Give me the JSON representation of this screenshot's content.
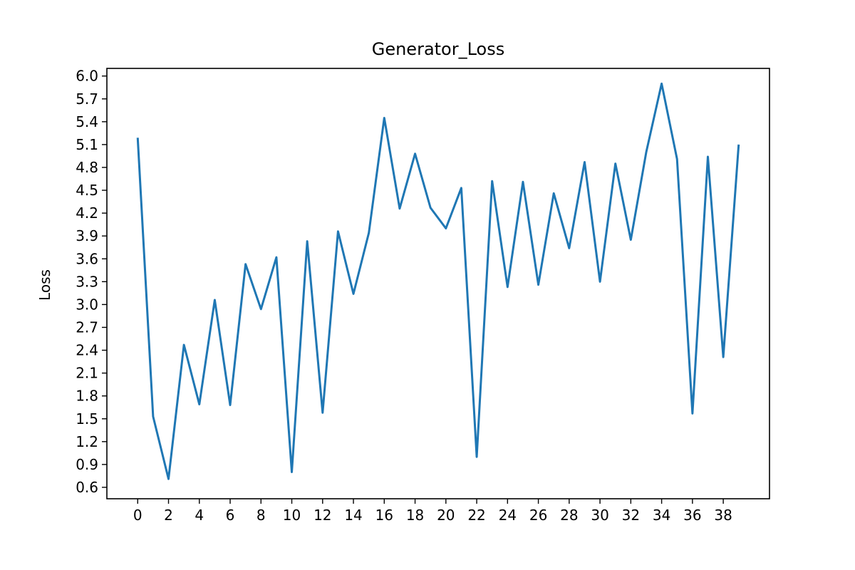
{
  "chart_data": {
    "type": "line",
    "title": "Generator_Loss",
    "xlabel": "",
    "ylabel": "Loss",
    "xlim": [
      -2,
      41
    ],
    "ylim": [
      0.45,
      6.1
    ],
    "xticks": [
      0,
      2,
      4,
      6,
      8,
      10,
      12,
      14,
      16,
      18,
      20,
      22,
      24,
      26,
      28,
      30,
      32,
      34,
      36,
      38
    ],
    "xtick_labels": [
      "0",
      "2",
      "4",
      "6",
      "8",
      "10",
      "12",
      "14",
      "16",
      "18",
      "20",
      "22",
      "24",
      "26",
      "28",
      "30",
      "32",
      "34",
      "36",
      "38"
    ],
    "yticks": [
      0.6,
      0.9,
      1.2,
      1.5,
      1.8,
      2.1,
      2.4,
      2.7,
      3.0,
      3.3,
      3.6,
      3.9,
      4.2,
      4.5,
      4.8,
      5.1,
      5.4,
      5.7,
      6.0
    ],
    "ytick_labels": [
      "0.6",
      "0.9",
      "1.2",
      "1.5",
      "1.8",
      "2.1",
      "2.4",
      "2.7",
      "3.0",
      "3.3",
      "3.6",
      "3.9",
      "4.2",
      "4.5",
      "4.8",
      "5.1",
      "5.4",
      "5.7",
      "6.0"
    ],
    "grid": false,
    "legend": "none",
    "line_color": "#1f77b4",
    "series": [
      {
        "x": [
          0,
          1,
          2,
          3,
          4,
          5,
          6,
          7,
          8,
          9,
          10,
          11,
          12,
          13,
          14,
          15,
          16,
          17,
          18,
          19,
          20,
          21,
          22,
          23,
          24,
          25,
          26,
          27,
          28,
          29,
          30,
          31,
          32,
          33,
          34,
          35,
          36,
          37,
          38,
          39
        ],
        "values": [
          5.19,
          1.53,
          0.71,
          2.47,
          1.69,
          3.06,
          1.68,
          3.53,
          2.94,
          3.62,
          0.8,
          3.83,
          1.58,
          3.96,
          3.14,
          3.94,
          5.45,
          4.26,
          4.98,
          4.27,
          4.0,
          4.53,
          1.0,
          4.62,
          3.23,
          4.61,
          3.26,
          4.46,
          3.74,
          4.87,
          3.3,
          4.85,
          3.85,
          5.0,
          5.9,
          4.91,
          1.57,
          4.94,
          2.31,
          5.1
        ]
      }
    ]
  }
}
